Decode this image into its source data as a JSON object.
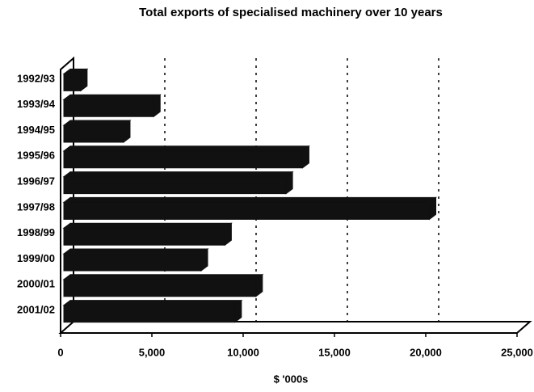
{
  "chart_data": {
    "type": "bar",
    "orientation": "horizontal",
    "title": "Total exports of specialised machinery over 10 years",
    "x_label": "$ '000s",
    "categories": [
      "1992/93",
      "1993/94",
      "1994/95",
      "1995/96",
      "1996/97",
      "1997/98",
      "1998/99",
      "1999/00",
      "2000/01",
      "2001/02"
    ],
    "values": [
      1100,
      5100,
      3450,
      13250,
      12350,
      20200,
      9000,
      7700,
      10700,
      9550
    ],
    "color": "#111111",
    "xlim": [
      0,
      25000
    ],
    "xticks": [
      0,
      {
        "value": 5000,
        "label": "5,000"
      },
      {
        "value": 10000,
        "label": "10,000"
      },
      {
        "value": 15000,
        "label": "15,000"
      },
      {
        "value": 20000,
        "label": "20,000"
      },
      {
        "value": 25000,
        "label": "25,000"
      }
    ],
    "grid": true
  }
}
